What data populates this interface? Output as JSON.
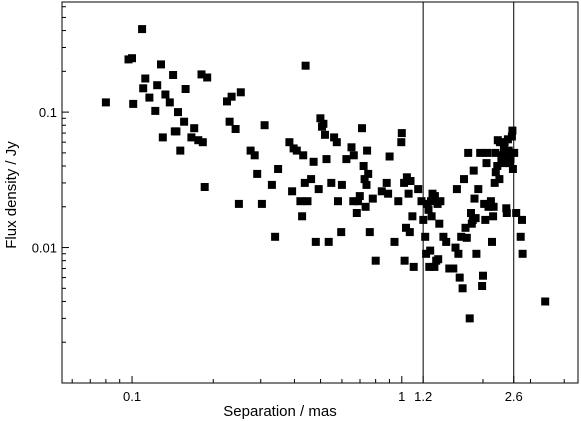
{
  "chart_data": {
    "type": "scatter",
    "title": "",
    "xlabel": "Separation / mas",
    "ylabel": "Flux density / Jy",
    "xscale": "log",
    "yscale": "log",
    "xlim": [
      0.055,
      4.5
    ],
    "ylim": [
      0.001,
      0.65
    ],
    "grid": false,
    "marker": "filled-square",
    "color": "#000000",
    "x_ticks": [
      {
        "value": 0.1,
        "label": "0.1"
      },
      {
        "value": 1,
        "label": "1"
      },
      {
        "value": 1.2,
        "label": "1.2"
      },
      {
        "value": 2.6,
        "label": "2.6"
      }
    ],
    "y_ticks": [
      {
        "value": 0.01,
        "label": "0.01"
      },
      {
        "value": 0.1,
        "label": "0.1"
      }
    ],
    "vertical_lines": [
      1.2,
      2.6
    ],
    "series": [
      {
        "points": [
          [
            0.08,
            0.118
          ],
          [
            0.097,
            0.245
          ],
          [
            0.1,
            0.25
          ],
          [
            0.101,
            0.115
          ],
          [
            0.109,
            0.41
          ],
          [
            0.11,
            0.15
          ],
          [
            0.112,
            0.177
          ],
          [
            0.116,
            0.128
          ],
          [
            0.122,
            0.102
          ],
          [
            0.124,
            0.158
          ],
          [
            0.128,
            0.225
          ],
          [
            0.13,
            0.065
          ],
          [
            0.133,
            0.135
          ],
          [
            0.138,
            0.118
          ],
          [
            0.142,
            0.188
          ],
          [
            0.144,
            0.072
          ],
          [
            0.146,
            0.072
          ],
          [
            0.148,
            0.1
          ],
          [
            0.151,
            0.052
          ],
          [
            0.156,
            0.085
          ],
          [
            0.158,
            0.148
          ],
          [
            0.166,
            0.065
          ],
          [
            0.17,
            0.076
          ],
          [
            0.176,
            0.062
          ],
          [
            0.181,
            0.19
          ],
          [
            0.183,
            0.06
          ],
          [
            0.186,
            0.028
          ],
          [
            0.19,
            0.18
          ],
          [
            0.225,
            0.12
          ],
          [
            0.23,
            0.085
          ],
          [
            0.234,
            0.13
          ],
          [
            0.242,
            0.075
          ],
          [
            0.249,
            0.021
          ],
          [
            0.253,
            0.14
          ],
          [
            0.275,
            0.052
          ],
          [
            0.285,
            0.048
          ],
          [
            0.291,
            0.035
          ],
          [
            0.303,
            0.021
          ],
          [
            0.31,
            0.08
          ],
          [
            0.33,
            0.029
          ],
          [
            0.339,
            0.012
          ],
          [
            0.348,
            0.038
          ],
          [
            0.383,
            0.06
          ],
          [
            0.392,
            0.026
          ],
          [
            0.397,
            0.054
          ],
          [
            0.408,
            0.052
          ],
          [
            0.421,
            0.022
          ],
          [
            0.427,
            0.017
          ],
          [
            0.431,
            0.048
          ],
          [
            0.437,
            0.03
          ],
          [
            0.44,
            0.22
          ],
          [
            0.447,
            0.022
          ],
          [
            0.461,
            0.032
          ],
          [
            0.471,
            0.043
          ],
          [
            0.48,
            0.011
          ],
          [
            0.492,
            0.027
          ],
          [
            0.499,
            0.09
          ],
          [
            0.506,
            0.078
          ],
          [
            0.512,
            0.082
          ],
          [
            0.519,
            0.068
          ],
          [
            0.526,
            0.045
          ],
          [
            0.536,
            0.011
          ],
          [
            0.548,
            0.03
          ],
          [
            0.561,
            0.065
          ],
          [
            0.574,
            0.06
          ],
          [
            0.58,
            0.022
          ],
          [
            0.596,
            0.013
          ],
          [
            0.6,
            0.029
          ],
          [
            0.623,
            0.045
          ],
          [
            0.651,
            0.055
          ],
          [
            0.661,
            0.022
          ],
          [
            0.664,
            0.048
          ],
          [
            0.681,
            0.018
          ],
          [
            0.688,
            0.022
          ],
          [
            0.699,
            0.024
          ],
          [
            0.712,
            0.076
          ],
          [
            0.722,
            0.04
          ],
          [
            0.728,
            0.032
          ],
          [
            0.734,
            0.02
          ],
          [
            0.74,
            0.029
          ],
          [
            0.744,
            0.052
          ],
          [
            0.751,
            0.035
          ],
          [
            0.761,
            0.013
          ],
          [
            0.781,
            0.023
          ],
          [
            0.8,
            0.008
          ],
          [
            0.843,
            0.026
          ],
          [
            0.879,
            0.03
          ],
          [
            0.89,
            0.025
          ],
          [
            0.901,
            0.047
          ],
          [
            0.94,
            0.011
          ],
          [
            0.971,
            0.022
          ],
          [
            0.996,
            0.06
          ],
          [
            1.0,
            0.07
          ],
          [
            1.02,
            0.03
          ],
          [
            1.024,
            0.008
          ],
          [
            1.037,
            0.014
          ],
          [
            1.045,
            0.033
          ],
          [
            1.06,
            0.025
          ],
          [
            1.071,
            0.013
          ],
          [
            1.077,
            0.031
          ],
          [
            1.095,
            0.017
          ],
          [
            1.107,
            0.0072
          ],
          [
            1.15,
            0.027
          ],
          [
            1.183,
            0.022
          ],
          [
            1.202,
            0.016
          ],
          [
            1.221,
            0.012
          ],
          [
            1.231,
            0.009
          ],
          [
            1.245,
            0.021
          ],
          [
            1.256,
            0.019
          ],
          [
            1.265,
            0.0072
          ],
          [
            1.274,
            0.0095
          ],
          [
            1.283,
            0.022
          ],
          [
            1.29,
            0.017
          ],
          [
            1.3,
            0.025
          ],
          [
            1.321,
            0.0072
          ],
          [
            1.327,
            0.024
          ],
          [
            1.341,
            0.008
          ],
          [
            1.357,
            0.021
          ],
          [
            1.364,
            0.0082
          ],
          [
            1.377,
            0.015
          ],
          [
            1.39,
            0.022
          ],
          [
            1.426,
            0.012
          ],
          [
            1.461,
            0.011
          ],
          [
            1.5,
            0.007
          ],
          [
            1.552,
            0.007
          ],
          [
            1.581,
            0.01
          ],
          [
            1.6,
            0.027
          ],
          [
            1.621,
            0.009
          ],
          [
            1.64,
            0.006
          ],
          [
            1.661,
            0.012
          ],
          [
            1.681,
            0.005
          ],
          [
            1.701,
            0.032
          ],
          [
            1.722,
            0.014
          ],
          [
            1.742,
            0.0118
          ],
          [
            1.763,
            0.05
          ],
          [
            1.785,
            0.003
          ],
          [
            1.806,
            0.018
          ],
          [
            1.818,
            0.015
          ],
          [
            1.834,
            0.016
          ],
          [
            1.848,
            0.037
          ],
          [
            1.86,
            0.023
          ],
          [
            1.878,
            0.0165
          ],
          [
            1.891,
            0.009
          ],
          [
            1.921,
            0.027
          ],
          [
            1.952,
            0.05
          ],
          [
            1.985,
            0.0052
          ],
          [
            2.0,
            0.0062
          ],
          [
            2.02,
            0.021
          ],
          [
            2.04,
            0.016
          ],
          [
            2.06,
            0.042
          ],
          [
            2.071,
            0.05
          ],
          [
            2.096,
            0.02
          ],
          [
            2.14,
            0.022
          ],
          [
            2.16,
            0.011
          ],
          [
            2.18,
            0.017
          ],
          [
            2.19,
            0.02
          ],
          [
            2.21,
            0.03
          ],
          [
            2.221,
            0.05
          ],
          [
            2.231,
            0.036
          ],
          [
            2.26,
            0.04
          ],
          [
            2.27,
            0.062
          ],
          [
            2.3,
            0.032
          ],
          [
            2.31,
            0.06
          ],
          [
            2.34,
            0.045
          ],
          [
            2.35,
            0.048
          ],
          [
            2.372,
            0.042
          ],
          [
            2.39,
            0.053
          ],
          [
            2.406,
            0.06
          ],
          [
            2.418,
            0.044
          ],
          [
            2.43,
            0.048
          ],
          [
            2.44,
            0.0195
          ],
          [
            2.45,
            0.018
          ],
          [
            2.46,
            0.05
          ],
          [
            2.473,
            0.063
          ],
          [
            2.491,
            0.052
          ],
          [
            2.51,
            0.042
          ],
          [
            2.53,
            0.045
          ],
          [
            2.56,
            0.066
          ],
          [
            2.57,
            0.073
          ],
          [
            2.582,
            0.038
          ],
          [
            2.61,
            0.05
          ],
          [
            2.656,
            0.018
          ],
          [
            2.76,
            0.012
          ],
          [
            2.79,
            0.016
          ],
          [
            2.805,
            0.009
          ],
          [
            3.4,
            0.004
          ]
        ]
      }
    ]
  }
}
